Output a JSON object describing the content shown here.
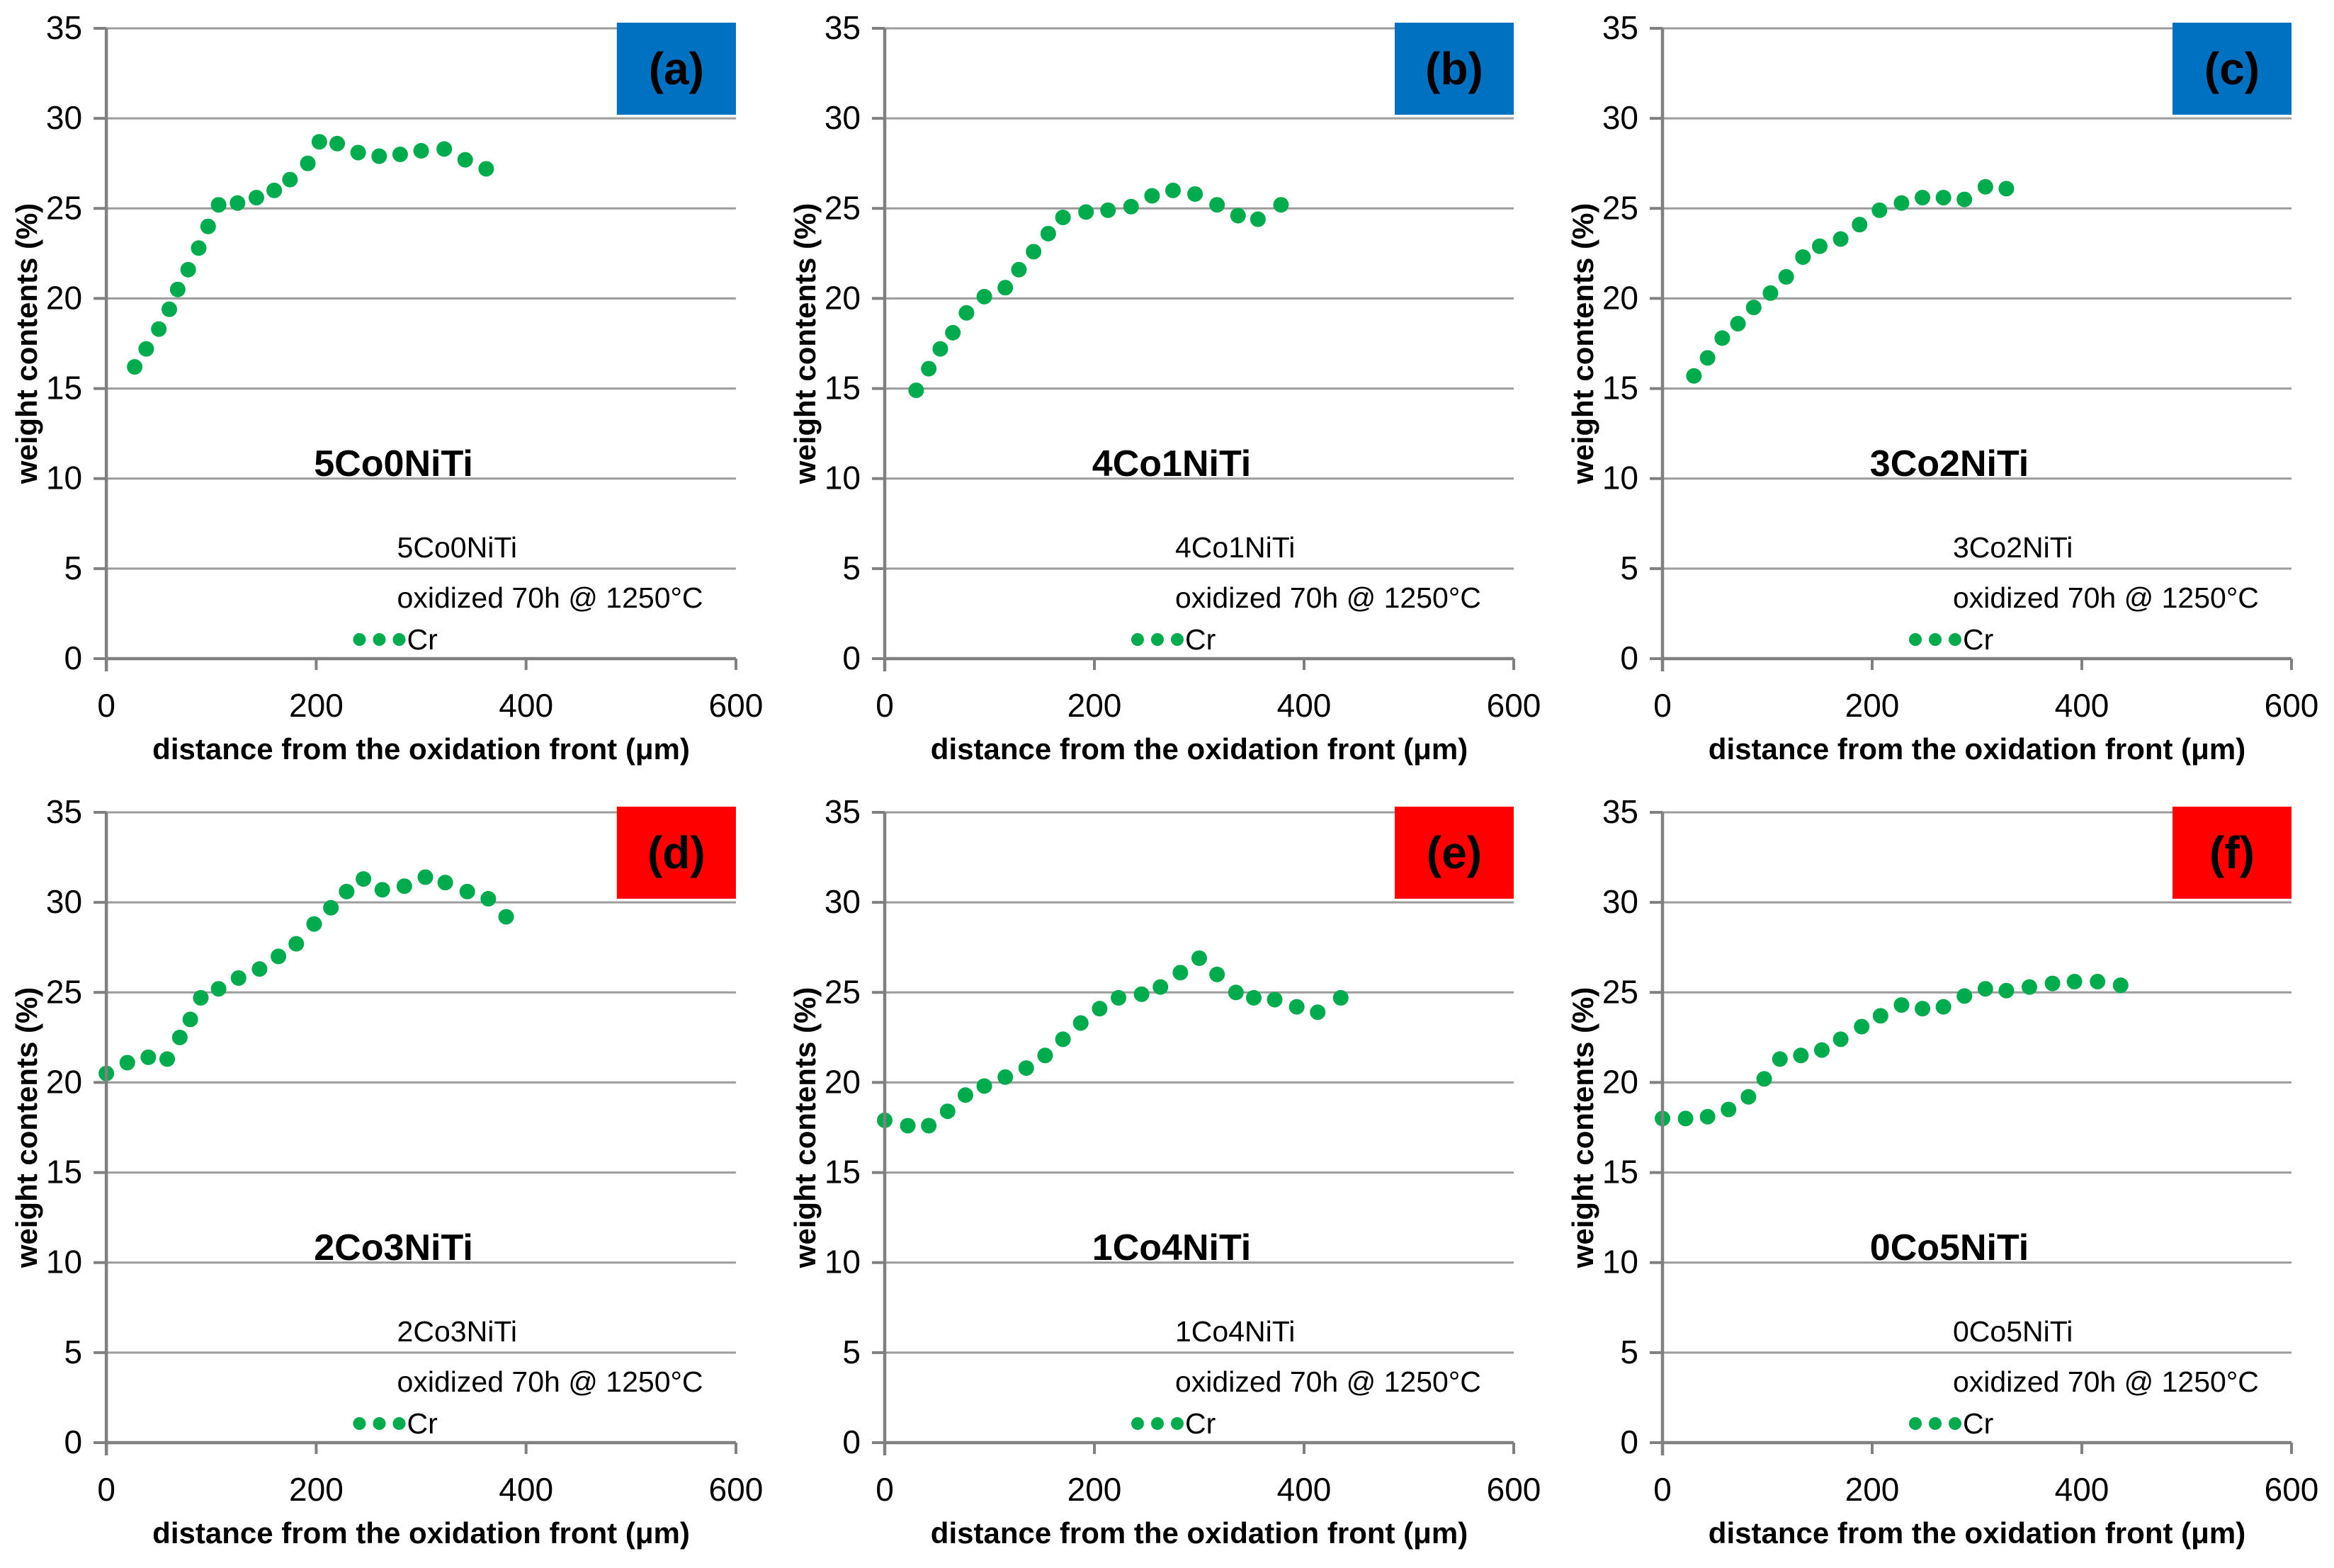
{
  "page": {
    "background": "#ffffff"
  },
  "colors": {
    "blue": "#0070C0",
    "red": "#FF0000",
    "green": "#00AB4E",
    "grid": "#9C9C9C",
    "axis": "#808080",
    "text": "#000000",
    "tag_text": "#ffffff"
  },
  "chart_data": [
    {
      "type": "scatter",
      "panel_tag": "(a)",
      "panel_tag_bg": "#0070C0",
      "title": "5Co0NiTi",
      "title_color": "#0070C0",
      "xlabel": "distance from the oxidation front (μm)",
      "ylabel": "weight contents (%)",
      "xlim": [
        0,
        600
      ],
      "ylim": [
        0,
        35
      ],
      "xticks": [
        0,
        200,
        400,
        600
      ],
      "yticks": [
        0,
        5,
        10,
        15,
        20,
        25,
        30,
        35
      ],
      "grid": true,
      "legend": {
        "position": "inside-bottom",
        "lines": [
          "5Co0NiTi",
          "oxidized 70h @ 1250°C"
        ],
        "series_label": "Cr"
      },
      "series": [
        {
          "name": "Cr",
          "color": "#00AB4E",
          "marker": "dot",
          "points": [
            [
              27,
              16.2
            ],
            [
              38,
              17.2
            ],
            [
              50,
              18.3
            ],
            [
              60,
              19.4
            ],
            [
              68,
              20.5
            ],
            [
              78,
              21.6
            ],
            [
              88,
              22.8
            ],
            [
              97,
              24.0
            ],
            [
              107,
              25.2
            ],
            [
              125,
              25.3
            ],
            [
              143,
              25.6
            ],
            [
              160,
              26.0
            ],
            [
              175,
              26.6
            ],
            [
              192,
              27.5
            ],
            [
              203,
              28.7
            ],
            [
              220,
              28.6
            ],
            [
              240,
              28.1
            ],
            [
              260,
              27.9
            ],
            [
              280,
              28.0
            ],
            [
              300,
              28.2
            ],
            [
              322,
              28.3
            ],
            [
              342,
              27.7
            ],
            [
              362,
              27.2
            ]
          ]
        }
      ]
    },
    {
      "type": "scatter",
      "panel_tag": "(b)",
      "panel_tag_bg": "#0070C0",
      "title": "4Co1NiTi",
      "title_color": "#0070C0",
      "xlabel": "distance from the oxidation front (μm)",
      "ylabel": "weight contents (%)",
      "xlim": [
        0,
        600
      ],
      "ylim": [
        0,
        35
      ],
      "xticks": [
        0,
        200,
        400,
        600
      ],
      "yticks": [
        0,
        5,
        10,
        15,
        20,
        25,
        30,
        35
      ],
      "grid": true,
      "legend": {
        "position": "inside-bottom",
        "lines": [
          "4Co1NiTi",
          "oxidized 70h @ 1250°C"
        ],
        "series_label": "Cr"
      },
      "series": [
        {
          "name": "Cr",
          "color": "#00AB4E",
          "marker": "dot",
          "points": [
            [
              30,
              14.9
            ],
            [
              42,
              16.1
            ],
            [
              53,
              17.2
            ],
            [
              65,
              18.1
            ],
            [
              78,
              19.2
            ],
            [
              95,
              20.1
            ],
            [
              115,
              20.6
            ],
            [
              128,
              21.6
            ],
            [
              142,
              22.6
            ],
            [
              156,
              23.6
            ],
            [
              170,
              24.5
            ],
            [
              192,
              24.8
            ],
            [
              213,
              24.9
            ],
            [
              235,
              25.1
            ],
            [
              255,
              25.7
            ],
            [
              275,
              26.0
            ],
            [
              296,
              25.8
            ],
            [
              317,
              25.2
            ],
            [
              337,
              24.6
            ],
            [
              356,
              24.4
            ],
            [
              378,
              25.2
            ]
          ]
        }
      ]
    },
    {
      "type": "scatter",
      "panel_tag": "(c)",
      "panel_tag_bg": "#0070C0",
      "title": "3Co2NiTi",
      "title_color": "#0070C0",
      "xlabel": "distance from the oxidation front (μm)",
      "ylabel": "weight contents (%)",
      "xlim": [
        0,
        600
      ],
      "ylim": [
        0,
        35
      ],
      "xticks": [
        0,
        200,
        400,
        600
      ],
      "yticks": [
        0,
        5,
        10,
        15,
        20,
        25,
        30,
        35
      ],
      "grid": true,
      "legend": {
        "position": "inside-bottom",
        "lines": [
          "3Co2NiTi",
          "oxidized 70h @ 1250°C"
        ],
        "series_label": "Cr"
      },
      "series": [
        {
          "name": "Cr",
          "color": "#00AB4E",
          "marker": "dot",
          "points": [
            [
              30,
              15.7
            ],
            [
              43,
              16.7
            ],
            [
              57,
              17.8
            ],
            [
              72,
              18.6
            ],
            [
              87,
              19.5
            ],
            [
              103,
              20.3
            ],
            [
              118,
              21.2
            ],
            [
              134,
              22.3
            ],
            [
              150,
              22.9
            ],
            [
              170,
              23.3
            ],
            [
              188,
              24.1
            ],
            [
              207,
              24.9
            ],
            [
              228,
              25.3
            ],
            [
              248,
              25.6
            ],
            [
              268,
              25.6
            ],
            [
              288,
              25.5
            ],
            [
              308,
              26.2
            ],
            [
              328,
              26.1
            ]
          ]
        }
      ]
    },
    {
      "type": "scatter",
      "panel_tag": "(d)",
      "panel_tag_bg": "#FF0000",
      "title": "2Co3NiTi",
      "title_color": "#FF0000",
      "xlabel": "distance from the oxidation front (μm)",
      "ylabel": "weight contents (%)",
      "xlim": [
        0,
        600
      ],
      "ylim": [
        0,
        35
      ],
      "xticks": [
        0,
        200,
        400,
        600
      ],
      "yticks": [
        0,
        5,
        10,
        15,
        20,
        25,
        30,
        35
      ],
      "grid": true,
      "legend": {
        "position": "inside-bottom",
        "lines": [
          "2Co3NiTi",
          "oxidized 70h @ 1250°C"
        ],
        "series_label": "Cr"
      },
      "series": [
        {
          "name": "Cr",
          "color": "#00AB4E",
          "marker": "dot",
          "points": [
            [
              0,
              20.5
            ],
            [
              20,
              21.1
            ],
            [
              40,
              21.4
            ],
            [
              58,
              21.3
            ],
            [
              70,
              22.5
            ],
            [
              80,
              23.5
            ],
            [
              90,
              24.7
            ],
            [
              107,
              25.2
            ],
            [
              126,
              25.8
            ],
            [
              146,
              26.3
            ],
            [
              164,
              27.0
            ],
            [
              181,
              27.7
            ],
            [
              198,
              28.8
            ],
            [
              214,
              29.7
            ],
            [
              229,
              30.6
            ],
            [
              245,
              31.3
            ],
            [
              263,
              30.7
            ],
            [
              284,
              30.9
            ],
            [
              304,
              31.4
            ],
            [
              323,
              31.1
            ],
            [
              344,
              30.6
            ],
            [
              364,
              30.2
            ],
            [
              381,
              29.2
            ]
          ]
        }
      ]
    },
    {
      "type": "scatter",
      "panel_tag": "(e)",
      "panel_tag_bg": "#FF0000",
      "title": "1Co4NiTi",
      "title_color": "#FF0000",
      "xlabel": "distance from the oxidation front (μm)",
      "ylabel": "weight contents (%)",
      "xlim": [
        0,
        600
      ],
      "ylim": [
        0,
        35
      ],
      "xticks": [
        0,
        200,
        400,
        600
      ],
      "yticks": [
        0,
        5,
        10,
        15,
        20,
        25,
        30,
        35
      ],
      "grid": true,
      "legend": {
        "position": "inside-bottom",
        "lines": [
          "1Co4NiTi",
          "oxidized 70h @ 1250°C"
        ],
        "series_label": "Cr"
      },
      "series": [
        {
          "name": "Cr",
          "color": "#00AB4E",
          "marker": "dot",
          "points": [
            [
              0,
              17.9
            ],
            [
              22,
              17.6
            ],
            [
              42,
              17.6
            ],
            [
              60,
              18.4
            ],
            [
              77,
              19.3
            ],
            [
              95,
              19.8
            ],
            [
              115,
              20.3
            ],
            [
              135,
              20.8
            ],
            [
              153,
              21.5
            ],
            [
              170,
              22.4
            ],
            [
              187,
              23.3
            ],
            [
              205,
              24.1
            ],
            [
              223,
              24.7
            ],
            [
              245,
              24.9
            ],
            [
              263,
              25.3
            ],
            [
              282,
              26.1
            ],
            [
              300,
              26.9
            ],
            [
              317,
              26.0
            ],
            [
              335,
              25.0
            ],
            [
              352,
              24.7
            ],
            [
              372,
              24.6
            ],
            [
              393,
              24.2
            ],
            [
              413,
              23.9
            ],
            [
              435,
              24.7
            ]
          ]
        }
      ]
    },
    {
      "type": "scatter",
      "panel_tag": "(f)",
      "panel_tag_bg": "#FF0000",
      "title": "0Co5NiTi",
      "title_color": "#FF0000",
      "xlabel": "distance from the oxidation front (μm)",
      "ylabel": "weight contents (%)",
      "xlim": [
        0,
        600
      ],
      "ylim": [
        0,
        35
      ],
      "xticks": [
        0,
        200,
        400,
        600
      ],
      "yticks": [
        0,
        5,
        10,
        15,
        20,
        25,
        30,
        35
      ],
      "grid": true,
      "legend": {
        "position": "inside-bottom",
        "lines": [
          "0Co5NiTi",
          "oxidized 70h @ 1250°C"
        ],
        "series_label": "Cr"
      },
      "series": [
        {
          "name": "Cr",
          "color": "#00AB4E",
          "marker": "dot",
          "points": [
            [
              0,
              18.0
            ],
            [
              22,
              18.0
            ],
            [
              43,
              18.1
            ],
            [
              63,
              18.5
            ],
            [
              82,
              19.2
            ],
            [
              97,
              20.2
            ],
            [
              112,
              21.3
            ],
            [
              132,
              21.5
            ],
            [
              152,
              21.8
            ],
            [
              170,
              22.4
            ],
            [
              190,
              23.1
            ],
            [
              208,
              23.7
            ],
            [
              228,
              24.3
            ],
            [
              248,
              24.1
            ],
            [
              268,
              24.2
            ],
            [
              288,
              24.8
            ],
            [
              308,
              25.2
            ],
            [
              328,
              25.1
            ],
            [
              350,
              25.3
            ],
            [
              372,
              25.5
            ],
            [
              393,
              25.6
            ],
            [
              415,
              25.6
            ],
            [
              437,
              25.4
            ]
          ]
        }
      ]
    }
  ]
}
